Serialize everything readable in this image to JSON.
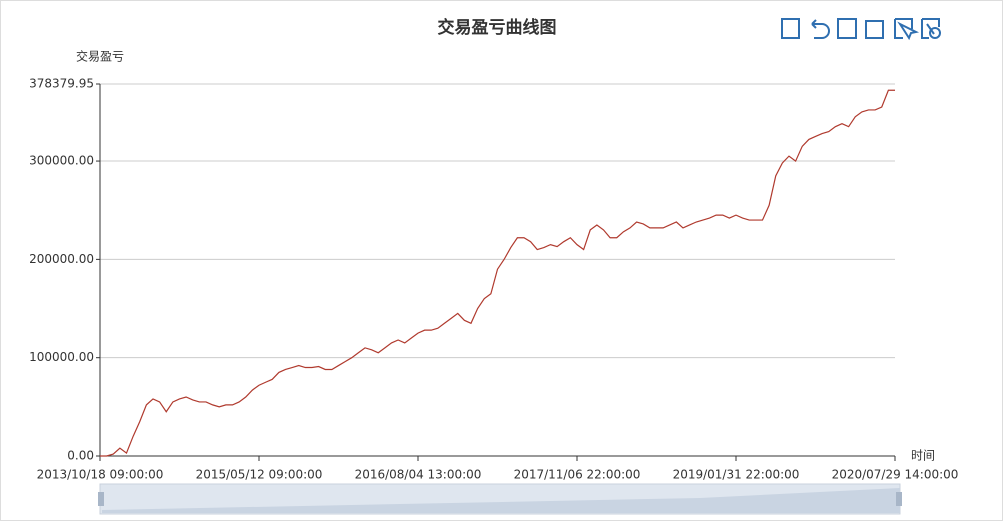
{
  "chart_data": {
    "type": "line",
    "title": "交易盈亏曲线图",
    "y_label": "交易盈亏",
    "x_label": "时间",
    "color": "#b03a2e",
    "grid": true,
    "ylim": [
      0,
      378379.95
    ],
    "yticks": [
      {
        "value": 0,
        "label": "0.00"
      },
      {
        "value": 100000,
        "label": "100000.00"
      },
      {
        "value": 200000,
        "label": "200000.00"
      },
      {
        "value": 300000,
        "label": "300000.00"
      },
      378379.95
    ],
    "categories": [
      "2013/10/18 09:00:00",
      null,
      null,
      null,
      null,
      null,
      null,
      null,
      null,
      null,
      null,
      null,
      null,
      null,
      null,
      null,
      null,
      null,
      null,
      null,
      null,
      null,
      null,
      null,
      "2015/05/12 09:00:00",
      null,
      null,
      null,
      null,
      null,
      null,
      null,
      null,
      null,
      null,
      null,
      null,
      null,
      null,
      null,
      null,
      null,
      null,
      null,
      null,
      null,
      null,
      null,
      "2016/08/04 13:00:00",
      null,
      null,
      null,
      null,
      null,
      null,
      null,
      null,
      null,
      null,
      null,
      null,
      null,
      null,
      null,
      null,
      null,
      null,
      null,
      null,
      null,
      null,
      null,
      "2017/11/06 22:00:00",
      null,
      null,
      null,
      null,
      null,
      null,
      null,
      null,
      null,
      null,
      null,
      null,
      null,
      null,
      null,
      null,
      null,
      null,
      null,
      null,
      null,
      null,
      null,
      "2019/01/31 22:00:00",
      null,
      null,
      null,
      null,
      null,
      null,
      null,
      null,
      null,
      null,
      null,
      null,
      null,
      null,
      null,
      null,
      null,
      null,
      null,
      null,
      null,
      null,
      null,
      "2020/07/29 14:00:00"
    ],
    "values": [
      0,
      0,
      2000,
      8000,
      3000,
      20000,
      35000,
      52000,
      58000,
      55000,
      45000,
      55000,
      58000,
      60000,
      57000,
      55000,
      55000,
      52000,
      50000,
      52000,
      52000,
      55000,
      60000,
      67000,
      72000,
      75000,
      78000,
      85000,
      88000,
      90000,
      92000,
      90000,
      90000,
      91000,
      88000,
      88000,
      92000,
      96000,
      100000,
      105000,
      110000,
      108000,
      105000,
      110000,
      115000,
      118000,
      115000,
      120000,
      125000,
      128000,
      128000,
      130000,
      135000,
      140000,
      145000,
      138000,
      135000,
      150000,
      160000,
      165000,
      190000,
      200000,
      212000,
      222000,
      222000,
      218000,
      210000,
      212000,
      215000,
      213000,
      218000,
      222000,
      215000,
      210000,
      230000,
      235000,
      230000,
      222000,
      222000,
      228000,
      232000,
      238000,
      236000,
      232000,
      232000,
      232000,
      235000,
      238000,
      232000,
      235000,
      238000,
      240000,
      242000,
      245000,
      245000,
      242000,
      245000,
      242000,
      240000,
      240000,
      240000,
      255000,
      285000,
      298000,
      305000,
      300000,
      315000,
      322000,
      325000,
      328000,
      330000,
      335000,
      338000,
      335000,
      345000,
      350000,
      352000,
      352000,
      355000,
      372000,
      372000
    ]
  }
}
